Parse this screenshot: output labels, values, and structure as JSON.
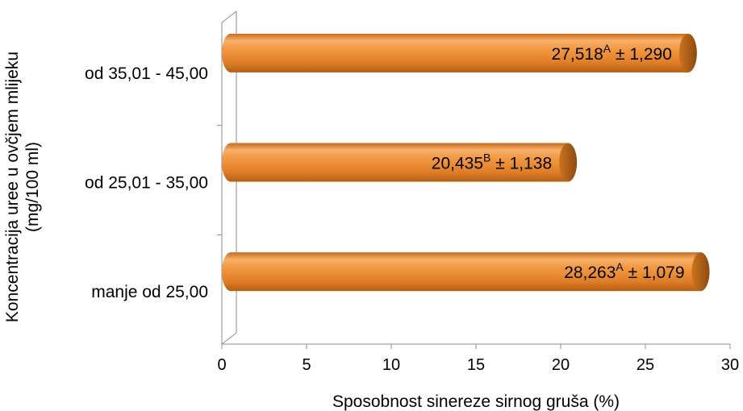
{
  "chart_data": {
    "type": "bar",
    "orientation": "horizontal",
    "style": "3d-cylinder",
    "bar_color": "#E8872E",
    "title": "",
    "xlabel": "Sposobnost sinereze sirnog gruša (%)",
    "ylabel_lines": [
      "Koncentracija uree  u ovčjem mlijeku",
      "(mg/100 ml)"
    ],
    "categories": [
      "manje od 25,00",
      "od 25,01 - 35,00",
      "od 35,01 - 45,00"
    ],
    "values": [
      28.263,
      20.435,
      27.518
    ],
    "data_labels": [
      {
        "value": "28,263",
        "sup": "A",
        "err": "± 1,079"
      },
      {
        "value": "20,435",
        "sup": "B",
        "err": "± 1,138"
      },
      {
        "value": "27,518",
        "sup": "A",
        "err": "± 1,290"
      }
    ],
    "xlim": [
      0,
      30
    ],
    "xticks": [
      "0",
      "5",
      "10",
      "15",
      "20",
      "25",
      "30"
    ],
    "grid": false,
    "legend": "none"
  }
}
